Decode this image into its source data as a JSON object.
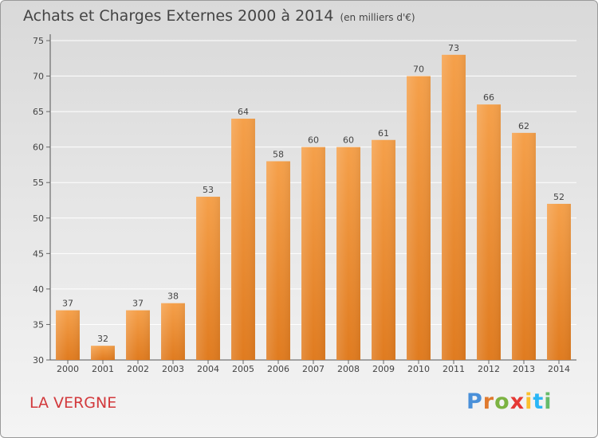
{
  "title": "Achats et Charges Externes 2000 à 2014",
  "subtitle": "(en milliers d'€)",
  "commune": "LA VERGNE",
  "brand": {
    "letters": [
      "P",
      "r",
      "o",
      "x",
      "i",
      "t",
      "i"
    ],
    "colors": [
      "#4a90d9",
      "#e07a2e",
      "#7cb342",
      "#e53935",
      "#fbc02d",
      "#29b6f6",
      "#66bb6a"
    ]
  },
  "colors": {
    "bar_top": "#f5a04a",
    "bar_bottom": "#e07b1f",
    "title": "#444444",
    "commune": "#d2393c"
  },
  "chart_data": {
    "type": "bar",
    "title": "Achats et Charges Externes 2000 à 2014",
    "xlabel": "",
    "ylabel": "",
    "categories": [
      "2000",
      "2001",
      "2002",
      "2003",
      "2004",
      "2005",
      "2006",
      "2007",
      "2008",
      "2009",
      "2010",
      "2011",
      "2012",
      "2013",
      "2014"
    ],
    "values": [
      37,
      32,
      37,
      38,
      53,
      64,
      58,
      60,
      60,
      61,
      70,
      73,
      66,
      62,
      52
    ],
    "ylim": [
      30,
      75
    ],
    "yticks": [
      30,
      35,
      40,
      45,
      50,
      55,
      60,
      65,
      70,
      75
    ],
    "grid": true,
    "legend": "none"
  }
}
